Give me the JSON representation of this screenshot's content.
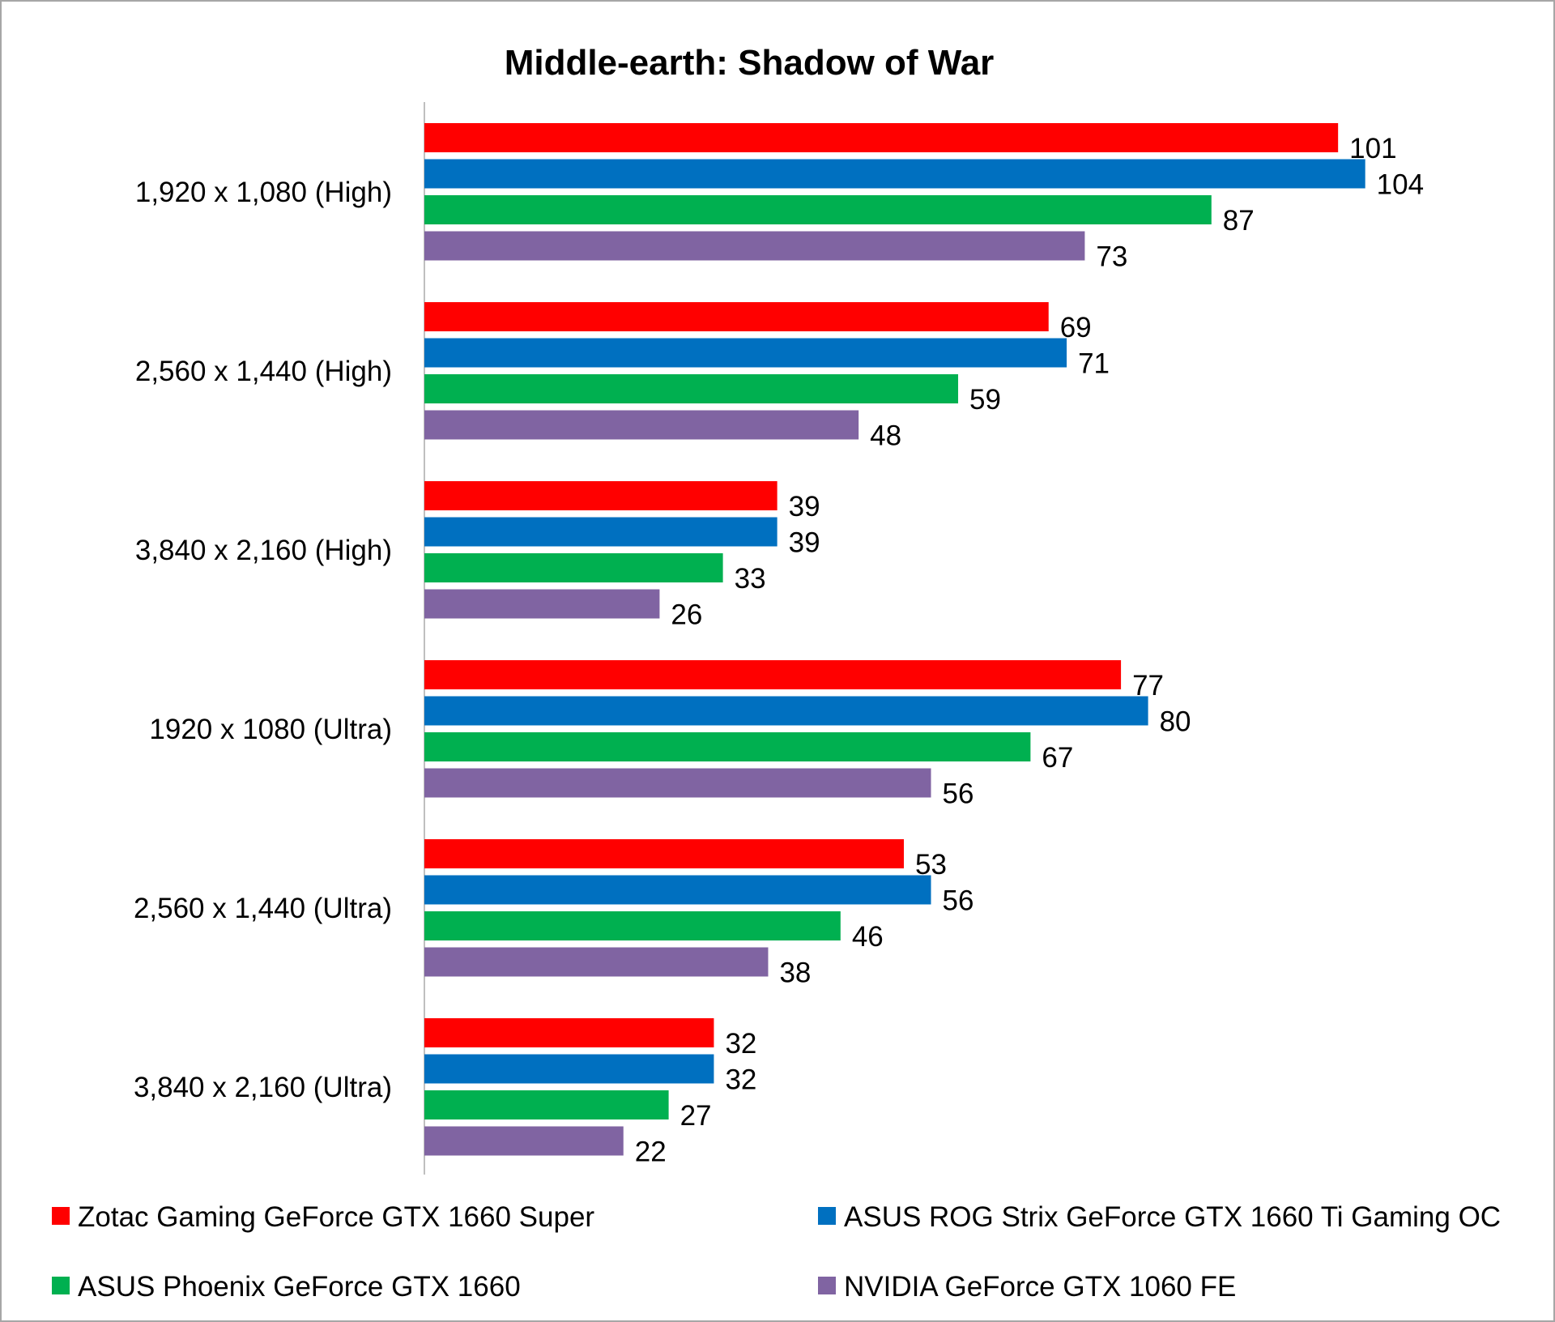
{
  "chart_data": {
    "type": "bar",
    "orientation": "horizontal",
    "title": "Middle-earth: Shadow of War",
    "xlabel": "",
    "ylabel": "",
    "xlim": [
      0,
      110
    ],
    "grid": false,
    "legend_position": "bottom",
    "categories": [
      "1,920 x 1,080 (High)",
      "2,560 x 1,440 (High)",
      "3,840 x 2,160 (High)",
      "1920 x 1080 (Ultra)",
      "2,560 x 1,440 (Ultra)",
      "3,840 x 2,160 (Ultra)"
    ],
    "series": [
      {
        "name": "Zotac Gaming GeForce GTX 1660 Super",
        "color": "#ff0000",
        "values": [
          101,
          69,
          39,
          77,
          53,
          32
        ]
      },
      {
        "name": "ASUS ROG Strix GeForce GTX 1660 Ti Gaming OC",
        "color": "#0070c0",
        "values": [
          104,
          71,
          39,
          80,
          56,
          32
        ]
      },
      {
        "name": "ASUS Phoenix GeForce GTX 1660",
        "color": "#00b050",
        "values": [
          87,
          59,
          33,
          67,
          46,
          27
        ]
      },
      {
        "name": "NVIDIA GeForce GTX 1060 FE",
        "color": "#8064a2",
        "values": [
          73,
          48,
          26,
          56,
          38,
          22
        ]
      }
    ]
  }
}
